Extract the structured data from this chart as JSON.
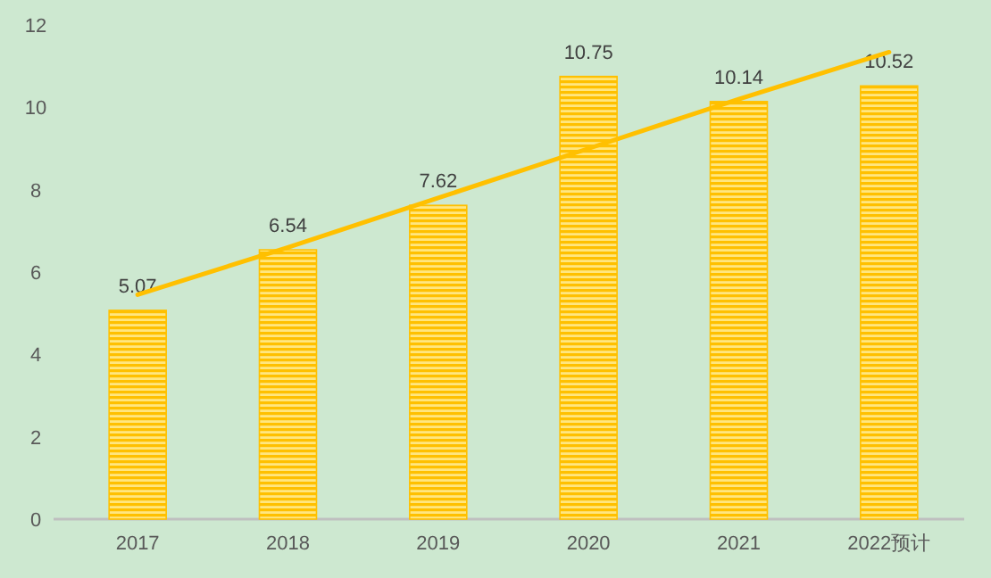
{
  "chart_data": {
    "type": "bar",
    "categories": [
      "2017",
      "2018",
      "2019",
      "2020",
      "2021",
      "2022预计"
    ],
    "series": [
      {
        "color": "#ffc000",
        "values": [
          5.07,
          6.54,
          7.62,
          10.75,
          10.14,
          10.52
        ],
        "value_labels": [
          "5.07",
          "6.54",
          "7.62",
          "10.75",
          "10.14",
          "10.52"
        ]
      },
      {
        "type": "line",
        "color": "#ffc000",
        "values": [
          5.45,
          6.6,
          7.8,
          9.0,
          10.2,
          11.34
        ]
      }
    ],
    "ylim": [
      0,
      12
    ],
    "yticks": [
      0,
      2,
      4,
      6,
      8,
      10,
      12
    ],
    "grid": false
  }
}
